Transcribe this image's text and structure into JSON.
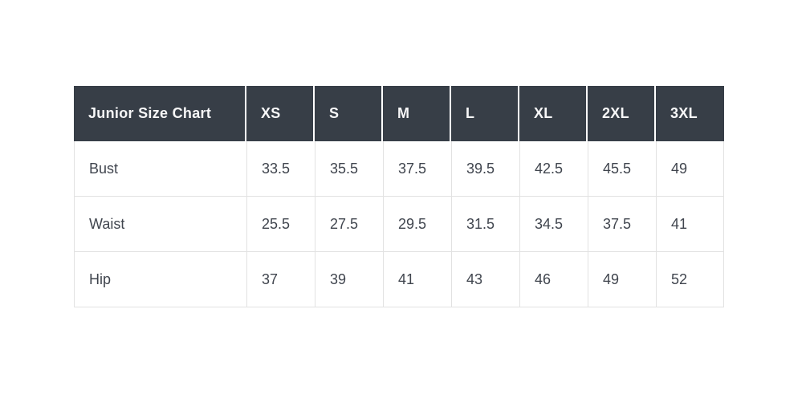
{
  "page": {
    "background": "#ffffff"
  },
  "table": {
    "title": "Junior Size Chart",
    "columns": [
      "XS",
      "S",
      "M",
      "L",
      "XL",
      "2XL",
      "3XL"
    ],
    "rows": [
      {
        "label": "Bust",
        "values": [
          "33.5",
          "35.5",
          "37.5",
          "39.5",
          "42.5",
          "45.5",
          "49"
        ]
      },
      {
        "label": "Waist",
        "values": [
          "25.5",
          "27.5",
          "29.5",
          "31.5",
          "34.5",
          "37.5",
          "41"
        ]
      },
      {
        "label": "Hip",
        "values": [
          "37",
          "39",
          "41",
          "43",
          "46",
          "49",
          "52"
        ]
      }
    ],
    "colors": {
      "header_bg": "#373e47",
      "header_text": "#f7f7f8",
      "cell_text": "#40454e",
      "grid_border": "#e2e2e2",
      "header_separator": "#ffffff"
    }
  },
  "chart_data": {
    "type": "table",
    "title": "Junior Size Chart",
    "categories": [
      "XS",
      "S",
      "M",
      "L",
      "XL",
      "2XL",
      "3XL"
    ],
    "series": [
      {
        "name": "Bust",
        "values": [
          33.5,
          35.5,
          37.5,
          39.5,
          42.5,
          45.5,
          49
        ]
      },
      {
        "name": "Waist",
        "values": [
          25.5,
          27.5,
          29.5,
          31.5,
          34.5,
          37.5,
          41
        ]
      },
      {
        "name": "Hip",
        "values": [
          37,
          39,
          41,
          43,
          46,
          49,
          52
        ]
      }
    ],
    "layout": {
      "grid": true,
      "header_row": "dark",
      "units": "inches (implied)"
    }
  }
}
